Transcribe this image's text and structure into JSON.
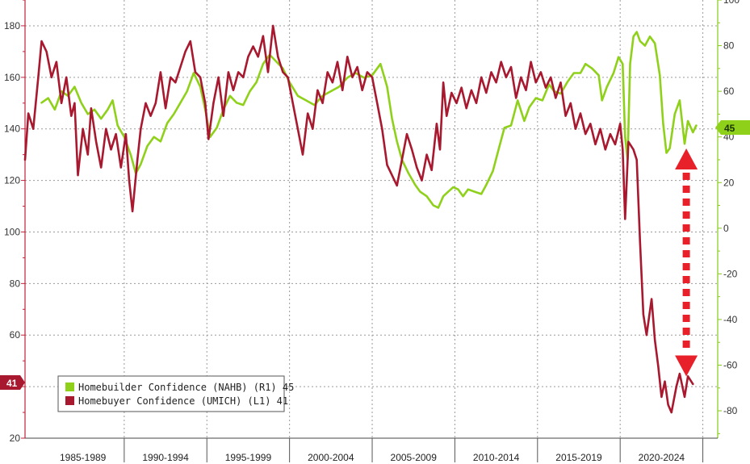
{
  "chart_data": {
    "type": "line",
    "title": "",
    "xlabel": "",
    "x_range": [
      1984.0,
      2025.9
    ],
    "period_labels": [
      "1985-1989",
      "1990-1994",
      "1995-1999",
      "2000-2004",
      "2005-2009",
      "2010-2014",
      "2015-2019",
      "2020-2024"
    ],
    "left_axis": {
      "range": [
        20,
        190
      ],
      "ticks": [
        20,
        60,
        80,
        100,
        120,
        140,
        160,
        180
      ],
      "gridlines": [
        20,
        40,
        60,
        80,
        100,
        120,
        140,
        160,
        180
      ],
      "color": "#c0223a"
    },
    "right_axis": {
      "range": [
        -92,
        100
      ],
      "ticks": [
        -80,
        -60,
        -40,
        -20,
        0,
        20,
        40,
        60,
        80,
        100
      ],
      "color": "#84cc16"
    },
    "grid": true,
    "legend_position": "bottom-left",
    "series": [
      {
        "name": "Homebuilder Confidence (NAHB) (R1)",
        "axis": "right",
        "color": "#8fd11a",
        "last_value": "45",
        "points": [
          [
            1985.0,
            55
          ],
          [
            1985.4,
            57
          ],
          [
            1985.8,
            52
          ],
          [
            1986.2,
            60
          ],
          [
            1986.6,
            58
          ],
          [
            1987.0,
            62
          ],
          [
            1987.4,
            55
          ],
          [
            1987.8,
            50
          ],
          [
            1988.2,
            52
          ],
          [
            1988.6,
            48
          ],
          [
            1989.0,
            52
          ],
          [
            1989.3,
            56
          ],
          [
            1989.6,
            45
          ],
          [
            1990.0,
            40
          ],
          [
            1990.4,
            32
          ],
          [
            1990.7,
            24
          ],
          [
            1991.0,
            28
          ],
          [
            1991.4,
            36
          ],
          [
            1991.8,
            40
          ],
          [
            1992.2,
            38
          ],
          [
            1992.6,
            46
          ],
          [
            1993.0,
            50
          ],
          [
            1993.4,
            55
          ],
          [
            1993.8,
            60
          ],
          [
            1994.2,
            68
          ],
          [
            1994.6,
            62
          ],
          [
            1994.9,
            52
          ],
          [
            1995.2,
            40
          ],
          [
            1995.6,
            44
          ],
          [
            1996.0,
            52
          ],
          [
            1996.4,
            58
          ],
          [
            1996.8,
            55
          ],
          [
            1997.2,
            54
          ],
          [
            1997.6,
            60
          ],
          [
            1998.0,
            64
          ],
          [
            1998.4,
            72
          ],
          [
            1998.8,
            76
          ],
          [
            1999.2,
            73
          ],
          [
            1999.6,
            70
          ],
          [
            2000.0,
            64
          ],
          [
            2000.5,
            58
          ],
          [
            2001.0,
            56
          ],
          [
            2001.5,
            54
          ],
          [
            2002.0,
            58
          ],
          [
            2002.5,
            60
          ],
          [
            2003.0,
            62
          ],
          [
            2003.5,
            66
          ],
          [
            2004.0,
            68
          ],
          [
            2004.5,
            66
          ],
          [
            2005.0,
            67
          ],
          [
            2005.5,
            72
          ],
          [
            2005.9,
            62
          ],
          [
            2006.2,
            48
          ],
          [
            2006.5,
            38
          ],
          [
            2006.8,
            30
          ],
          [
            2007.2,
            24
          ],
          [
            2007.6,
            19
          ],
          [
            2007.9,
            16
          ],
          [
            2008.3,
            14
          ],
          [
            2008.7,
            10
          ],
          [
            2009.0,
            9
          ],
          [
            2009.3,
            14
          ],
          [
            2009.6,
            16
          ],
          [
            2009.9,
            18
          ],
          [
            2010.2,
            17
          ],
          [
            2010.5,
            14
          ],
          [
            2010.8,
            17
          ],
          [
            2011.2,
            16
          ],
          [
            2011.6,
            15
          ],
          [
            2011.9,
            19
          ],
          [
            2012.3,
            25
          ],
          [
            2012.7,
            36
          ],
          [
            2013.0,
            44
          ],
          [
            2013.4,
            45
          ],
          [
            2013.8,
            56
          ],
          [
            2014.2,
            47
          ],
          [
            2014.5,
            53
          ],
          [
            2014.9,
            57
          ],
          [
            2015.3,
            56
          ],
          [
            2015.7,
            63
          ],
          [
            2016.0,
            60
          ],
          [
            2016.4,
            59
          ],
          [
            2016.8,
            64
          ],
          [
            2017.2,
            68
          ],
          [
            2017.6,
            68
          ],
          [
            2017.9,
            72
          ],
          [
            2018.3,
            70
          ],
          [
            2018.7,
            67
          ],
          [
            2018.9,
            56
          ],
          [
            2019.2,
            62
          ],
          [
            2019.6,
            68
          ],
          [
            2019.9,
            75
          ],
          [
            2020.15,
            72
          ],
          [
            2020.3,
            40
          ],
          [
            2020.45,
            30
          ],
          [
            2020.6,
            72
          ],
          [
            2020.8,
            84
          ],
          [
            2021.0,
            86
          ],
          [
            2021.2,
            82
          ],
          [
            2021.5,
            80
          ],
          [
            2021.8,
            84
          ],
          [
            2022.1,
            81
          ],
          [
            2022.4,
            67
          ],
          [
            2022.6,
            46
          ],
          [
            2022.8,
            33
          ],
          [
            2023.0,
            35
          ],
          [
            2023.3,
            50
          ],
          [
            2023.6,
            56
          ],
          [
            2023.9,
            37
          ],
          [
            2024.1,
            47
          ],
          [
            2024.4,
            42
          ],
          [
            2024.6,
            45
          ]
        ]
      },
      {
        "name": "Homebuyer Confidence (UMICH) (L1)",
        "axis": "left",
        "color": "#a8182f",
        "last_value": "41",
        "points": [
          [
            1984.0,
            128
          ],
          [
            1984.2,
            146
          ],
          [
            1984.5,
            140
          ],
          [
            1984.8,
            160
          ],
          [
            1985.0,
            174
          ],
          [
            1985.3,
            170
          ],
          [
            1985.6,
            160
          ],
          [
            1985.9,
            166
          ],
          [
            1986.2,
            150
          ],
          [
            1986.5,
            160
          ],
          [
            1986.8,
            145
          ],
          [
            1987.0,
            150
          ],
          [
            1987.2,
            122
          ],
          [
            1987.5,
            140
          ],
          [
            1987.8,
            130
          ],
          [
            1988.0,
            148
          ],
          [
            1988.3,
            135
          ],
          [
            1988.6,
            125
          ],
          [
            1988.9,
            140
          ],
          [
            1989.2,
            132
          ],
          [
            1989.5,
            138
          ],
          [
            1989.8,
            125
          ],
          [
            1990.1,
            138
          ],
          [
            1990.3,
            120
          ],
          [
            1990.5,
            108
          ],
          [
            1990.8,
            128
          ],
          [
            1991.0,
            140
          ],
          [
            1991.3,
            150
          ],
          [
            1991.6,
            145
          ],
          [
            1991.9,
            150
          ],
          [
            1992.2,
            162
          ],
          [
            1992.5,
            148
          ],
          [
            1992.8,
            160
          ],
          [
            1993.1,
            158
          ],
          [
            1993.4,
            164
          ],
          [
            1993.7,
            170
          ],
          [
            1994.0,
            174
          ],
          [
            1994.3,
            162
          ],
          [
            1994.6,
            160
          ],
          [
            1994.9,
            150
          ],
          [
            1995.1,
            136
          ],
          [
            1995.4,
            150
          ],
          [
            1995.7,
            160
          ],
          [
            1996.0,
            145
          ],
          [
            1996.3,
            162
          ],
          [
            1996.6,
            155
          ],
          [
            1996.9,
            162
          ],
          [
            1997.2,
            160
          ],
          [
            1997.5,
            168
          ],
          [
            1997.8,
            172
          ],
          [
            1998.1,
            168
          ],
          [
            1998.4,
            176
          ],
          [
            1998.7,
            162
          ],
          [
            1999.0,
            180
          ],
          [
            1999.3,
            168
          ],
          [
            1999.6,
            162
          ],
          [
            1999.9,
            160
          ],
          [
            2000.2,
            150
          ],
          [
            2000.5,
            140
          ],
          [
            2000.8,
            130
          ],
          [
            2001.1,
            146
          ],
          [
            2001.4,
            140
          ],
          [
            2001.7,
            155
          ],
          [
            2002.0,
            150
          ],
          [
            2002.3,
            162
          ],
          [
            2002.6,
            158
          ],
          [
            2002.9,
            166
          ],
          [
            2003.2,
            155
          ],
          [
            2003.5,
            168
          ],
          [
            2003.8,
            160
          ],
          [
            2004.1,
            164
          ],
          [
            2004.4,
            155
          ],
          [
            2004.7,
            162
          ],
          [
            2005.0,
            160
          ],
          [
            2005.3,
            150
          ],
          [
            2005.6,
            140
          ],
          [
            2005.9,
            126
          ],
          [
            2006.2,
            122
          ],
          [
            2006.5,
            118
          ],
          [
            2006.8,
            128
          ],
          [
            2007.1,
            138
          ],
          [
            2007.4,
            132
          ],
          [
            2007.7,
            125
          ],
          [
            2008.0,
            120
          ],
          [
            2008.3,
            130
          ],
          [
            2008.6,
            124
          ],
          [
            2008.9,
            142
          ],
          [
            2009.1,
            132
          ],
          [
            2009.3,
            158
          ],
          [
            2009.5,
            145
          ],
          [
            2009.8,
            154
          ],
          [
            2010.1,
            150
          ],
          [
            2010.4,
            156
          ],
          [
            2010.7,
            148
          ],
          [
            2011.0,
            155
          ],
          [
            2011.3,
            150
          ],
          [
            2011.6,
            160
          ],
          [
            2011.9,
            154
          ],
          [
            2012.2,
            162
          ],
          [
            2012.5,
            158
          ],
          [
            2012.8,
            166
          ],
          [
            2013.1,
            160
          ],
          [
            2013.4,
            164
          ],
          [
            2013.7,
            152
          ],
          [
            2014.0,
            160
          ],
          [
            2014.3,
            155
          ],
          [
            2014.6,
            166
          ],
          [
            2014.9,
            158
          ],
          [
            2015.2,
            162
          ],
          [
            2015.5,
            156
          ],
          [
            2015.8,
            160
          ],
          [
            2016.1,
            152
          ],
          [
            2016.4,
            158
          ],
          [
            2016.7,
            145
          ],
          [
            2017.0,
            150
          ],
          [
            2017.3,
            140
          ],
          [
            2017.6,
            146
          ],
          [
            2017.9,
            138
          ],
          [
            2018.2,
            142
          ],
          [
            2018.5,
            134
          ],
          [
            2018.8,
            140
          ],
          [
            2019.1,
            132
          ],
          [
            2019.4,
            138
          ],
          [
            2019.7,
            134
          ],
          [
            2020.0,
            142
          ],
          [
            2020.15,
            132
          ],
          [
            2020.3,
            105
          ],
          [
            2020.5,
            135
          ],
          [
            2020.8,
            132
          ],
          [
            2021.0,
            128
          ],
          [
            2021.2,
            96
          ],
          [
            2021.4,
            68
          ],
          [
            2021.6,
            60
          ],
          [
            2021.9,
            74
          ],
          [
            2022.1,
            58
          ],
          [
            2022.3,
            48
          ],
          [
            2022.5,
            36
          ],
          [
            2022.7,
            42
          ],
          [
            2022.9,
            33
          ],
          [
            2023.1,
            30
          ],
          [
            2023.4,
            40
          ],
          [
            2023.6,
            45
          ],
          [
            2023.9,
            36
          ],
          [
            2024.1,
            44
          ],
          [
            2024.4,
            41
          ]
        ]
      }
    ],
    "annotation": {
      "type": "double-arrow",
      "style": "dashed",
      "color": "#e8202a",
      "x": 2024.0,
      "from_right": 30,
      "to_right": -60
    }
  }
}
